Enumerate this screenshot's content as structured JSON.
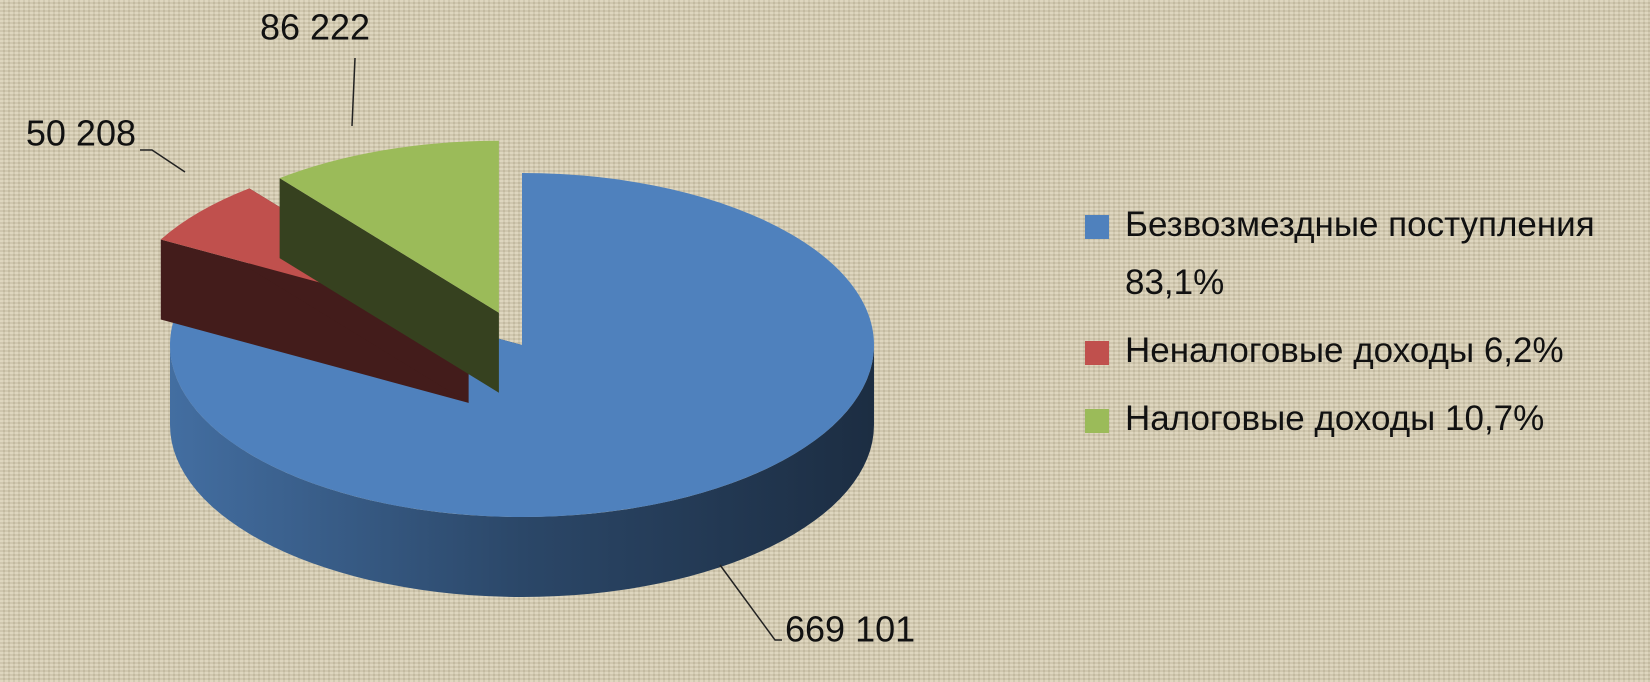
{
  "chart_data": {
    "type": "pie3d",
    "categories": [
      "Безвозмездные поступления 83,1%",
      "Неналоговые доходы 6,2%",
      "Налоговые доходы 10,7%"
    ],
    "values": [
      669101,
      50208,
      86222
    ],
    "value_labels": [
      "669 101",
      "50 208",
      "86 222"
    ],
    "colors": [
      "#4f81bd",
      "#c0504d",
      "#9bbb59"
    ],
    "legend": "right"
  }
}
